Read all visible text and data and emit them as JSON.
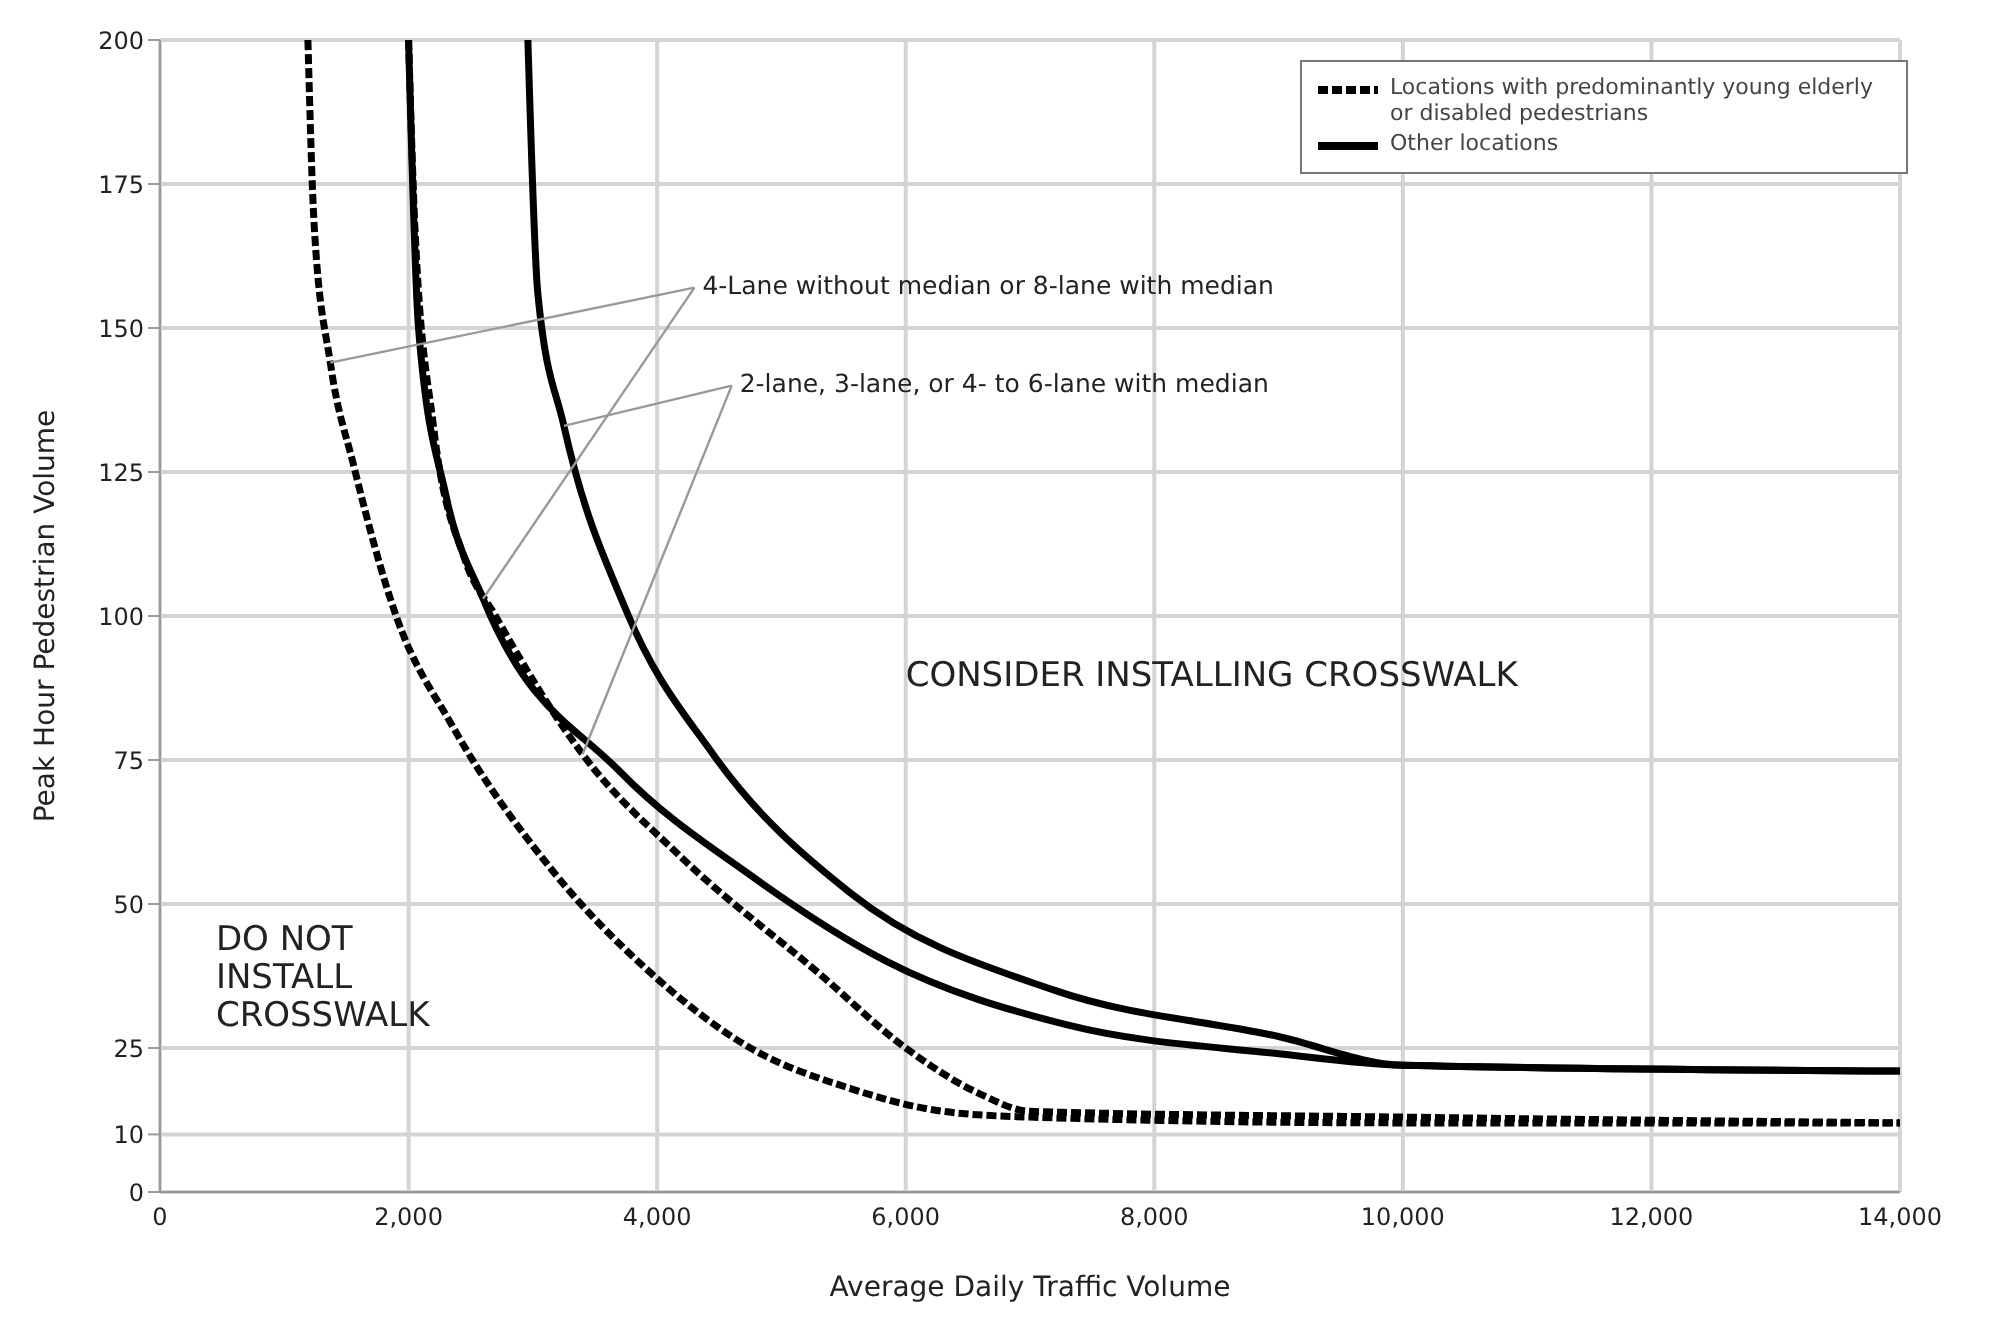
{
  "chart_data": {
    "type": "line",
    "xlabel": "Average Daily Traffic Volume",
    "ylabel": "Peak Hour Pedestrian Volume",
    "xlim": [
      0,
      14000
    ],
    "xticks": [
      0,
      {
        "value": 2000,
        "label": "2,000"
      },
      {
        "value": 4000,
        "label": "4,000"
      },
      {
        "value": 6000,
        "label": "6,000"
      },
      {
        "value": 8000,
        "label": "8,000"
      },
      {
        "value": 10000,
        "label": "10,000"
      },
      {
        "value": 12000,
        "label": "12,000"
      },
      {
        "value": 14000,
        "label": "14,000"
      }
    ],
    "ylim": [
      0,
      200
    ],
    "yticks": [
      0,
      10,
      25,
      50,
      75,
      100,
      125,
      150,
      175,
      200
    ],
    "grid": true,
    "legend": "top right",
    "marker": "none",
    "series": [
      {
        "name": "Locations with predominantly young elderly or disabled pedestrians",
        "color": "#000000",
        "line_style": "dashed",
        "x": [
          1190,
          1240,
          1370,
          1560,
          1900,
          2350,
          3150,
          3950,
          4750,
          5550,
          6300,
          7000,
          10000,
          14000
        ],
        "values": [
          200,
          168,
          144,
          126,
          100,
          81,
          56,
          38,
          25,
          18,
          14,
          13,
          12,
          12
        ]
      },
      {
        "color": "#000000",
        "line_style": "dashed",
        "x": [
          2000,
          2050,
          2200,
          2450,
          2700,
          3400,
          4200,
          5300,
          6000,
          6600,
          7000,
          10000,
          14000
        ],
        "values": [
          200,
          168,
          133,
          110,
          100,
          76,
          58,
          38,
          25,
          17,
          14,
          13,
          12
        ]
      },
      {
        "name": "Other locations",
        "color": "#000000",
        "line_style": "solid",
        "x": [
          2000,
          2080,
          2300,
          2600,
          3700,
          4750,
          5850,
          7300,
          9000,
          10000,
          14000
        ],
        "values": [
          200,
          150,
          121,
          103,
          73,
          55,
          40,
          29,
          24,
          22,
          21
        ]
      },
      {
        "color": "#000000",
        "line_style": "solid",
        "x": [
          2960,
          3040,
          3250,
          3750,
          4450,
          5550,
          7200,
          9000,
          10000,
          14000
        ],
        "values": [
          200,
          156,
          133,
          101,
          76,
          52,
          35,
          27,
          22,
          21
        ]
      }
    ],
    "annotations": [
      {
        "text": "4-Lane without median or 8-lane with median",
        "x": 1370,
        "y": 144
      },
      {
        "text": "2-lane, 3-lane, or 4- to 6-lane with median",
        "x": 3250,
        "y": 133
      },
      "CONSIDER INSTALLING CROSSWALK",
      "DO NOT INSTALL CROSSWALK"
    ]
  }
}
